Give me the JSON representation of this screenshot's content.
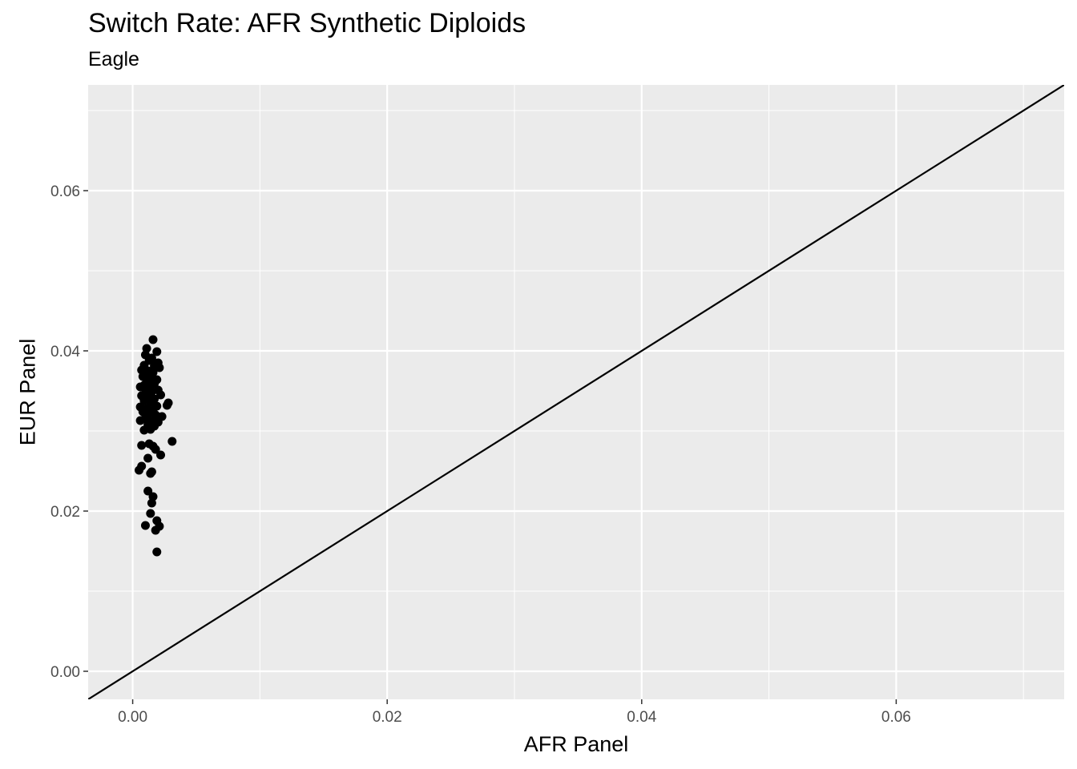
{
  "chart_data": {
    "type": "scatter",
    "title": "Switch Rate: AFR Synthetic Diploids",
    "subtitle": "Eagle",
    "xlabel": "AFR Panel",
    "ylabel": "EUR Panel",
    "xlim": [
      -0.0035,
      0.0732
    ],
    "ylim": [
      -0.0035,
      0.0732
    ],
    "x_ticks": [
      0.0,
      0.02,
      0.04,
      0.06
    ],
    "x_tick_labels": [
      "0.00",
      "0.02",
      "0.04",
      "0.06"
    ],
    "y_ticks": [
      0.0,
      0.02,
      0.04,
      0.06
    ],
    "y_tick_labels": [
      "0.00",
      "0.02",
      "0.04",
      "0.06"
    ],
    "grid": true,
    "reference_line": {
      "slope": 1,
      "intercept": 0
    },
    "points": [
      {
        "x": 0.0016,
        "y": 0.0414
      },
      {
        "x": 0.0011,
        "y": 0.0403
      },
      {
        "x": 0.0019,
        "y": 0.0399
      },
      {
        "x": 0.001,
        "y": 0.0395
      },
      {
        "x": 0.0015,
        "y": 0.0391
      },
      {
        "x": 0.0013,
        "y": 0.0388
      },
      {
        "x": 0.002,
        "y": 0.0385
      },
      {
        "x": 0.0009,
        "y": 0.0382
      },
      {
        "x": 0.0017,
        "y": 0.0381
      },
      {
        "x": 0.0021,
        "y": 0.0379
      },
      {
        "x": 0.0007,
        "y": 0.0376
      },
      {
        "x": 0.0012,
        "y": 0.0375
      },
      {
        "x": 0.0016,
        "y": 0.0373
      },
      {
        "x": 0.001,
        "y": 0.0371
      },
      {
        "x": 0.0008,
        "y": 0.0368
      },
      {
        "x": 0.0014,
        "y": 0.0366
      },
      {
        "x": 0.0019,
        "y": 0.0364
      },
      {
        "x": 0.0011,
        "y": 0.0362
      },
      {
        "x": 0.0017,
        "y": 0.0359
      },
      {
        "x": 0.0009,
        "y": 0.0357
      },
      {
        "x": 0.0006,
        "y": 0.0355
      },
      {
        "x": 0.0013,
        "y": 0.0354
      },
      {
        "x": 0.002,
        "y": 0.0351
      },
      {
        "x": 0.0015,
        "y": 0.0349
      },
      {
        "x": 0.001,
        "y": 0.0347
      },
      {
        "x": 0.0022,
        "y": 0.0345
      },
      {
        "x": 0.0007,
        "y": 0.0344
      },
      {
        "x": 0.0012,
        "y": 0.0342
      },
      {
        "x": 0.0017,
        "y": 0.034
      },
      {
        "x": 0.0009,
        "y": 0.0338
      },
      {
        "x": 0.0014,
        "y": 0.0336
      },
      {
        "x": 0.0028,
        "y": 0.0335
      },
      {
        "x": 0.0027,
        "y": 0.0332
      },
      {
        "x": 0.0019,
        "y": 0.0331
      },
      {
        "x": 0.0006,
        "y": 0.033
      },
      {
        "x": 0.0011,
        "y": 0.0328
      },
      {
        "x": 0.0016,
        "y": 0.0326
      },
      {
        "x": 0.0008,
        "y": 0.0324
      },
      {
        "x": 0.0013,
        "y": 0.0322
      },
      {
        "x": 0.0018,
        "y": 0.032
      },
      {
        "x": 0.0023,
        "y": 0.0318
      },
      {
        "x": 0.001,
        "y": 0.0316
      },
      {
        "x": 0.0006,
        "y": 0.0313
      },
      {
        "x": 0.0015,
        "y": 0.0312
      },
      {
        "x": 0.002,
        "y": 0.0311
      },
      {
        "x": 0.0012,
        "y": 0.0308
      },
      {
        "x": 0.0017,
        "y": 0.0306
      },
      {
        "x": 0.0014,
        "y": 0.0302
      },
      {
        "x": 0.0009,
        "y": 0.0301
      },
      {
        "x": 0.0031,
        "y": 0.0287
      },
      {
        "x": 0.0013,
        "y": 0.0284
      },
      {
        "x": 0.0007,
        "y": 0.0282
      },
      {
        "x": 0.0016,
        "y": 0.0281
      },
      {
        "x": 0.0018,
        "y": 0.0277
      },
      {
        "x": 0.0022,
        "y": 0.027
      },
      {
        "x": 0.0012,
        "y": 0.0266
      },
      {
        "x": 0.0007,
        "y": 0.0256
      },
      {
        "x": 0.0005,
        "y": 0.0251
      },
      {
        "x": 0.0015,
        "y": 0.0249
      },
      {
        "x": 0.0014,
        "y": 0.0247
      },
      {
        "x": 0.0012,
        "y": 0.0225
      },
      {
        "x": 0.0016,
        "y": 0.0218
      },
      {
        "x": 0.0015,
        "y": 0.021
      },
      {
        "x": 0.0014,
        "y": 0.0197
      },
      {
        "x": 0.0019,
        "y": 0.0188
      },
      {
        "x": 0.001,
        "y": 0.0182
      },
      {
        "x": 0.0021,
        "y": 0.0181
      },
      {
        "x": 0.0018,
        "y": 0.0176
      },
      {
        "x": 0.0019,
        "y": 0.0149
      }
    ]
  }
}
